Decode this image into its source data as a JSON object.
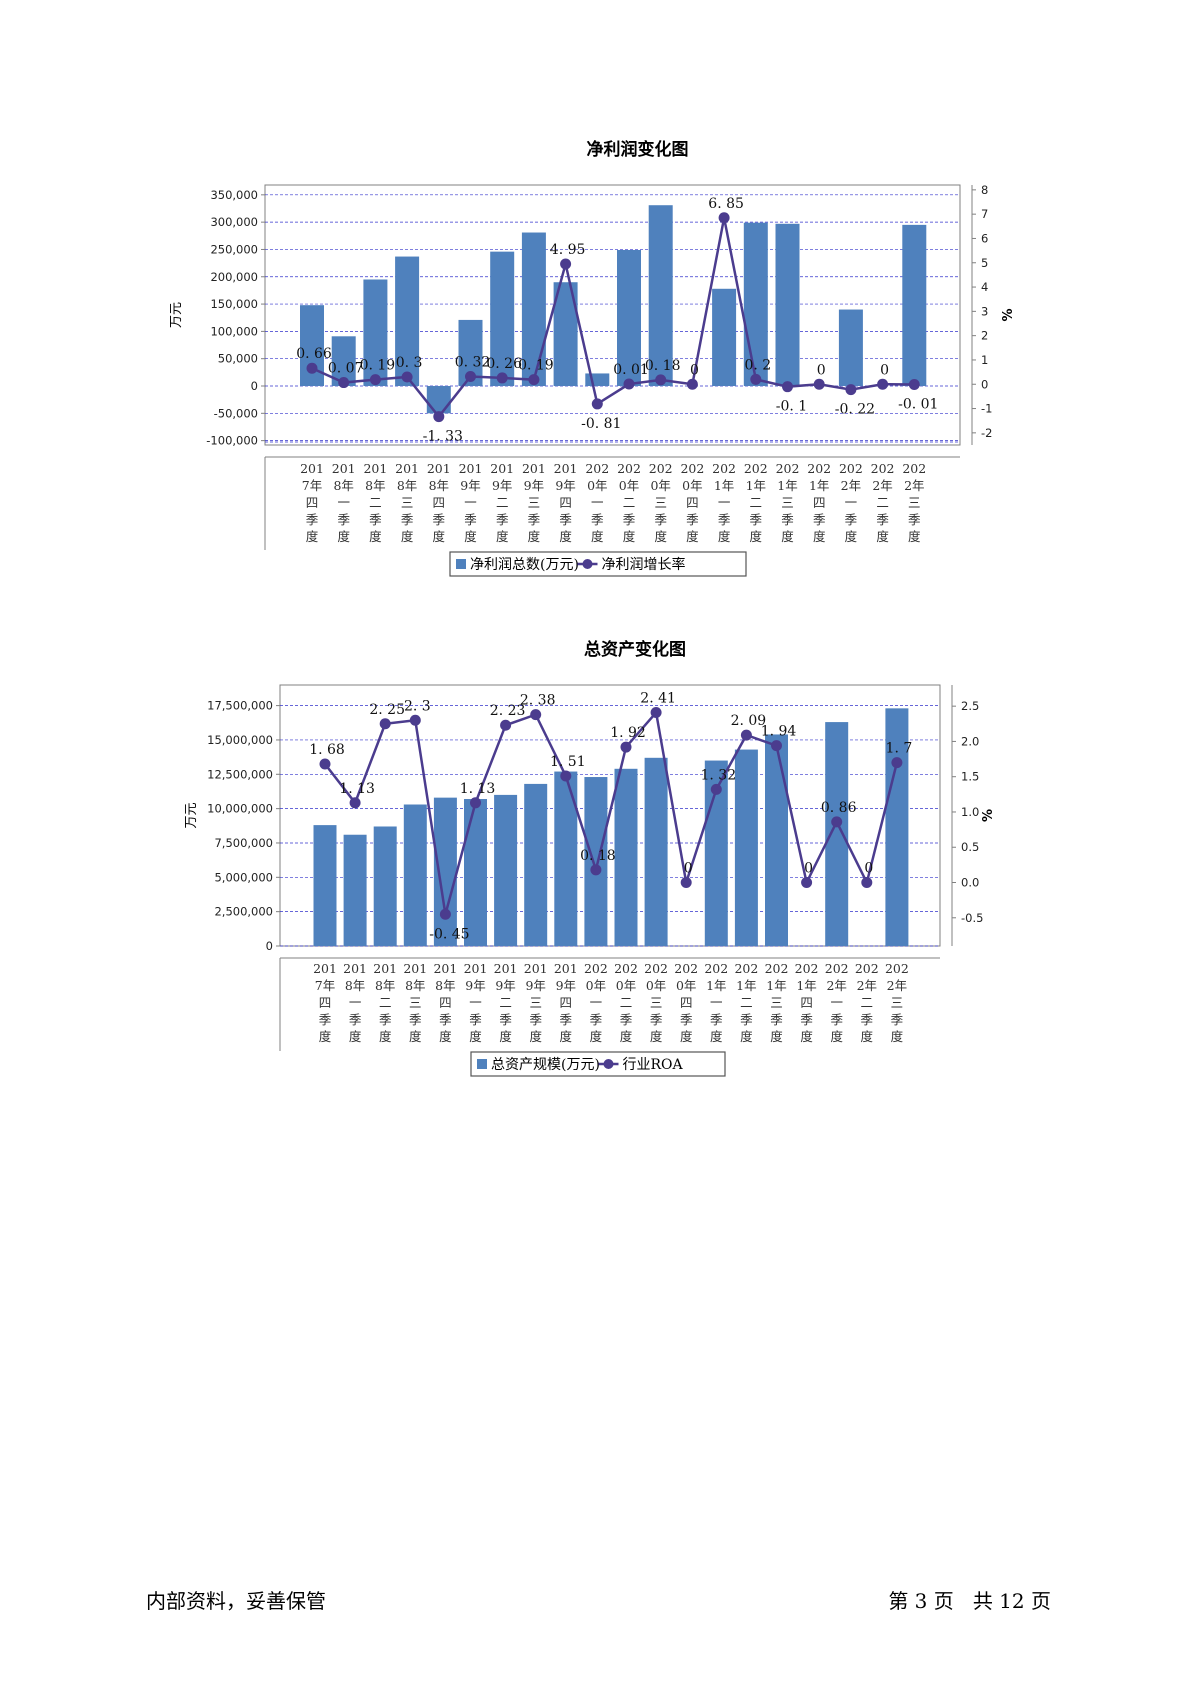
{
  "footer": {
    "left": "内部资料，妥善保管",
    "right": "第 3 页   共 12 页"
  },
  "chart_data": [
    {
      "type": "bar",
      "title": "净利润变化图",
      "ylabel": "万元",
      "y2label": "%",
      "ylim": [
        -100000,
        350000
      ],
      "y2lim": [
        -2,
        8
      ],
      "grid": true,
      "legend": "bottom",
      "categories": [
        "2017年四季度",
        "2018年一季度",
        "2018年二季度",
        "2018年三季度",
        "2018年四季度",
        "2019年一季度",
        "2019年二季度",
        "2019年三季度",
        "2019年四季度",
        "2020年一季度",
        "2020年二季度",
        "2020年三季度",
        "2020年四季度",
        "2021年一季度",
        "2021年二季度",
        "2021年三季度",
        "2021年四季度",
        "2022年一季度",
        "2022年二季度",
        "2022年三季度"
      ],
      "y_ticks": [
        "350,000",
        "300,000",
        "250,000",
        "200,000",
        "150,000",
        "100,000",
        "50,000",
        "0",
        "-50,000",
        "-100,000"
      ],
      "y2_ticks": [
        "8",
        "7",
        "6",
        "5",
        "4",
        "3",
        "2",
        "1",
        "0",
        "-1",
        "-2"
      ],
      "series": [
        {
          "name": "净利润总数(万元)",
          "type": "bar",
          "color": "#4f81bd",
          "values": [
            148000,
            91000,
            195000,
            237000,
            -50000,
            121000,
            246000,
            281000,
            190000,
            23000,
            249000,
            331000,
            null,
            178000,
            299000,
            297000,
            null,
            140000,
            null,
            295000
          ]
        },
        {
          "name": "净利润增长率",
          "type": "line",
          "color": "#4b3c8e",
          "values": [
            0.66,
            0.07,
            0.19,
            0.3,
            -1.33,
            0.32,
            0.26,
            0.19,
            4.95,
            -0.81,
            0.01,
            0.18,
            0,
            6.85,
            0.2,
            -0.1,
            0,
            -0.22,
            0,
            -0.01
          ],
          "labels": [
            "0. 66",
            "0. 07",
            "0. 19",
            "0. 3",
            "-1. 33",
            "0. 32",
            "0. 26",
            "0. 19",
            "4. 95",
            "-0. 81",
            "0. 01",
            "0. 18",
            "0",
            "6. 85",
            "0. 2",
            "-0. 1",
            "0",
            "-0. 22",
            "0",
            "-0. 01"
          ]
        }
      ]
    },
    {
      "type": "bar",
      "title": "总资产变化图",
      "ylabel": "万元",
      "y2label": "%",
      "ylim": [
        0,
        19000000
      ],
      "y2lim": [
        -0.9,
        2.8
      ],
      "grid": true,
      "legend": "bottom",
      "categories": [
        "2017年四季度",
        "2018年一季度",
        "2018年二季度",
        "2018年三季度",
        "2018年四季度",
        "2019年一季度",
        "2019年二季度",
        "2019年三季度",
        "2019年四季度",
        "2020年一季度",
        "2020年二季度",
        "2020年三季度",
        "2020年四季度",
        "2021年一季度",
        "2021年二季度",
        "2021年三季度",
        "2021年四季度",
        "2022年一季度",
        "2022年二季度",
        "2022年三季度"
      ],
      "y_ticks": [
        "17,500,000",
        "15,000,000",
        "12,500,000",
        "10,000,000",
        "7,500,000",
        "5,000,000",
        "2,500,000",
        "0"
      ],
      "y2_ticks": [
        "2.5",
        "2.0",
        "1.5",
        "1.0",
        "0.5",
        "0.0",
        "-0.5"
      ],
      "series": [
        {
          "name": "总资产规模(万元)",
          "type": "bar",
          "color": "#4f81bd",
          "values": [
            8800000,
            8100000,
            8700000,
            10300000,
            10800000,
            10700000,
            11000000,
            11800000,
            12700000,
            12300000,
            12900000,
            13700000,
            null,
            13500000,
            14300000,
            15400000,
            null,
            16300000,
            null,
            17300000
          ]
        },
        {
          "name": "行业ROA",
          "type": "line",
          "color": "#4b3c8e",
          "values": [
            1.68,
            1.13,
            2.25,
            2.3,
            -0.45,
            1.13,
            2.23,
            2.38,
            1.51,
            0.18,
            1.92,
            2.41,
            0,
            1.32,
            2.09,
            1.94,
            0,
            0.86,
            0,
            1.7
          ],
          "labels": [
            "1. 68",
            "1. 13",
            "2. 25",
            "2. 3",
            "-0. 45",
            "1. 13",
            "2. 23",
            "2. 38",
            "1. 51",
            "0. 18",
            "1. 92",
            "2. 41",
            "0",
            "1. 32",
            "2. 09",
            "1. 94",
            "0",
            "0. 86",
            "0",
            "1. 7"
          ]
        }
      ]
    }
  ]
}
